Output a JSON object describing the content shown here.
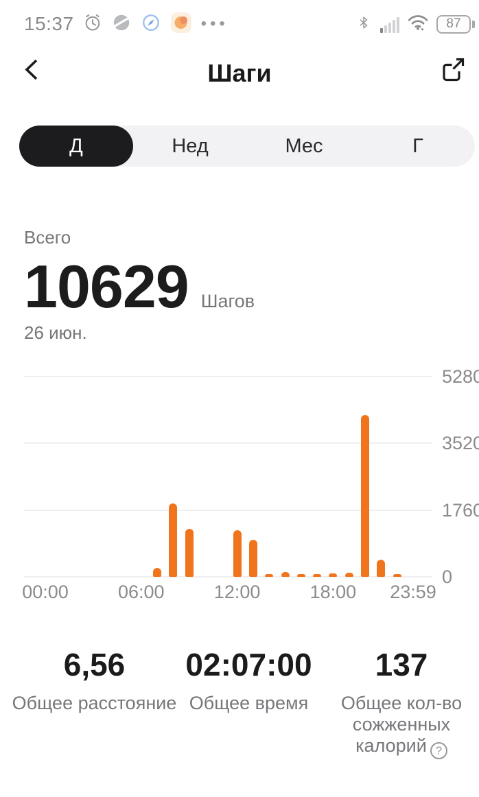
{
  "status_bar": {
    "time": "15:37",
    "more_glyph": "•••",
    "battery_percent": "87",
    "left_icons": [
      "alarm-icon",
      "planet-icon",
      "compass-icon",
      "app-notification-icon",
      "ellipsis-icon"
    ],
    "right_icons": [
      "bluetooth-icon",
      "signal-icon",
      "wifi-icon",
      "battery-icon"
    ]
  },
  "header": {
    "title": "Шаги",
    "back_icon": "chevron-left-icon",
    "share_icon": "share-icon"
  },
  "tabs": {
    "items": [
      {
        "label": "Д",
        "selected": true
      },
      {
        "label": "Нед",
        "selected": false
      },
      {
        "label": "Мес",
        "selected": false
      },
      {
        "label": "Г",
        "selected": false
      }
    ]
  },
  "summary": {
    "label": "Всего",
    "value": "10629",
    "unit": "Шагов",
    "date": "26 июн."
  },
  "chart_data": {
    "type": "bar",
    "title": "",
    "xlabel": "",
    "ylabel": "",
    "x_ticks": [
      "00:00",
      "06:00",
      "12:00",
      "18:00",
      "23:59"
    ],
    "y_ticks": [
      5280,
      3520,
      1760,
      0
    ],
    "ylim": [
      0,
      5280
    ],
    "xlim_hours": [
      0,
      24
    ],
    "grid": true,
    "y_axis_side": "right",
    "bar_color": "#F0741C",
    "points": [
      {
        "hour": 7,
        "value": 230
      },
      {
        "hour": 8,
        "value": 1930
      },
      {
        "hour": 9,
        "value": 1260
      },
      {
        "hour": 12,
        "value": 1230
      },
      {
        "hour": 13,
        "value": 975
      },
      {
        "hour": 14,
        "value": 50
      },
      {
        "hour": 15,
        "value": 125
      },
      {
        "hour": 16,
        "value": 35
      },
      {
        "hour": 17,
        "value": 55
      },
      {
        "hour": 18,
        "value": 90
      },
      {
        "hour": 19,
        "value": 110
      },
      {
        "hour": 20,
        "value": 4270
      },
      {
        "hour": 21,
        "value": 460
      },
      {
        "hour": 22,
        "value": 30
      }
    ]
  },
  "stats": {
    "help_glyph": "?",
    "items": [
      {
        "value": "6,56",
        "label": "Общее расстояние"
      },
      {
        "value": "02:07:00",
        "label": "Общее время"
      },
      {
        "value": "137",
        "label": "Общее кол-во сожженных калорий"
      }
    ]
  }
}
